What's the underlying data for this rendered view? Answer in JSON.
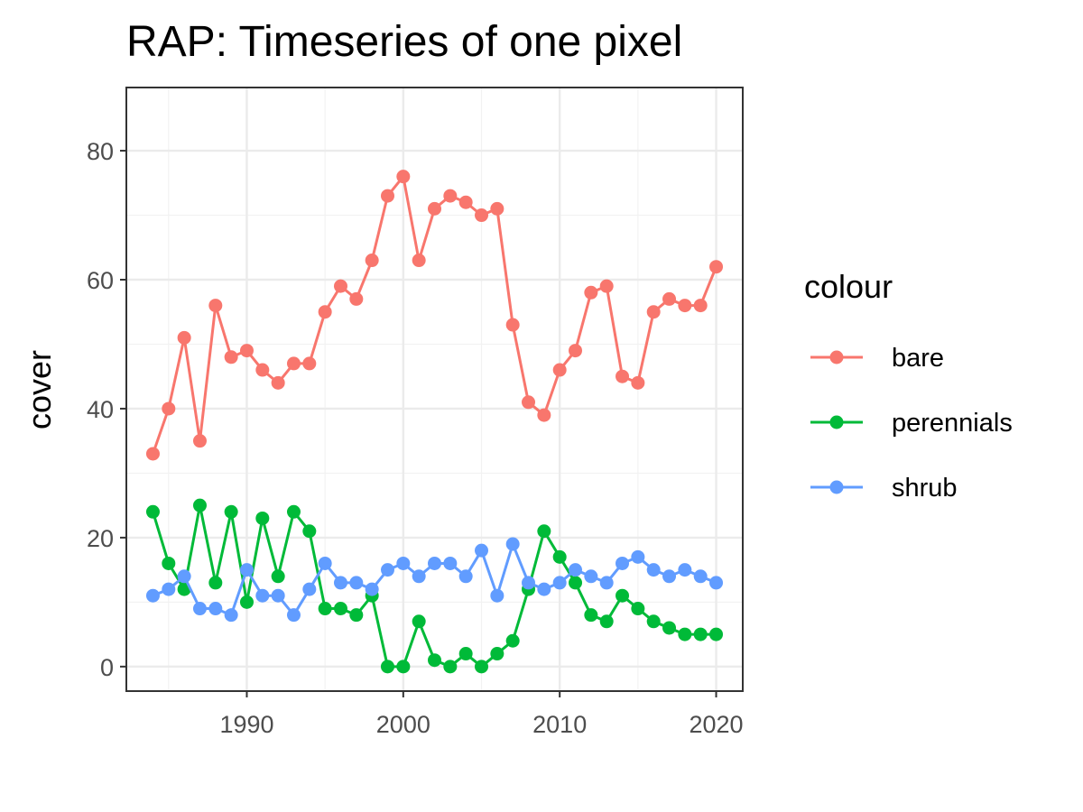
{
  "chart_data": {
    "type": "line",
    "title": "RAP: Timeseries of one pixel",
    "xlabel": "",
    "ylabel": "cover",
    "xlim": [
      1982.3,
      2021.7
    ],
    "ylim": [
      -3.8,
      89.8
    ],
    "x_ticks": [
      1990,
      2000,
      2010,
      2020
    ],
    "y_ticks": [
      0,
      20,
      40,
      60,
      80
    ],
    "grid": true,
    "legend": {
      "title": "colour",
      "position": "right"
    },
    "x": [
      1984,
      1985,
      1986,
      1987,
      1988,
      1989,
      1990,
      1991,
      1992,
      1993,
      1994,
      1995,
      1996,
      1997,
      1998,
      1999,
      2000,
      2001,
      2002,
      2003,
      2004,
      2005,
      2006,
      2007,
      2008,
      2009,
      2010,
      2011,
      2012,
      2013,
      2014,
      2015,
      2016,
      2017,
      2018,
      2019,
      2020
    ],
    "series": [
      {
        "name": "bare",
        "color": "#F8766D",
        "values": [
          33,
          40,
          51,
          35,
          56,
          48,
          49,
          46,
          44,
          47,
          47,
          55,
          59,
          57,
          63,
          73,
          76,
          63,
          71,
          73,
          72,
          70,
          71,
          53,
          41,
          39,
          46,
          49,
          58,
          59,
          45,
          44,
          55,
          57,
          56,
          56,
          62
        ]
      },
      {
        "name": "perennials",
        "color": "#00BA38",
        "values": [
          24,
          16,
          12,
          25,
          13,
          24,
          10,
          23,
          14,
          24,
          21,
          9,
          9,
          8,
          11,
          0,
          0,
          7,
          1,
          0,
          2,
          0,
          2,
          4,
          12,
          21,
          17,
          13,
          8,
          7,
          11,
          9,
          7,
          6,
          5,
          5,
          5
        ]
      },
      {
        "name": "shrub",
        "color": "#619CFF",
        "values": [
          11,
          12,
          14,
          9,
          9,
          8,
          15,
          11,
          11,
          8,
          12,
          16,
          13,
          13,
          12,
          15,
          16,
          14,
          16,
          16,
          14,
          18,
          11,
          19,
          13,
          12,
          13,
          15,
          14,
          13,
          16,
          17,
          15,
          14,
          15,
          14,
          13
        ]
      }
    ]
  }
}
